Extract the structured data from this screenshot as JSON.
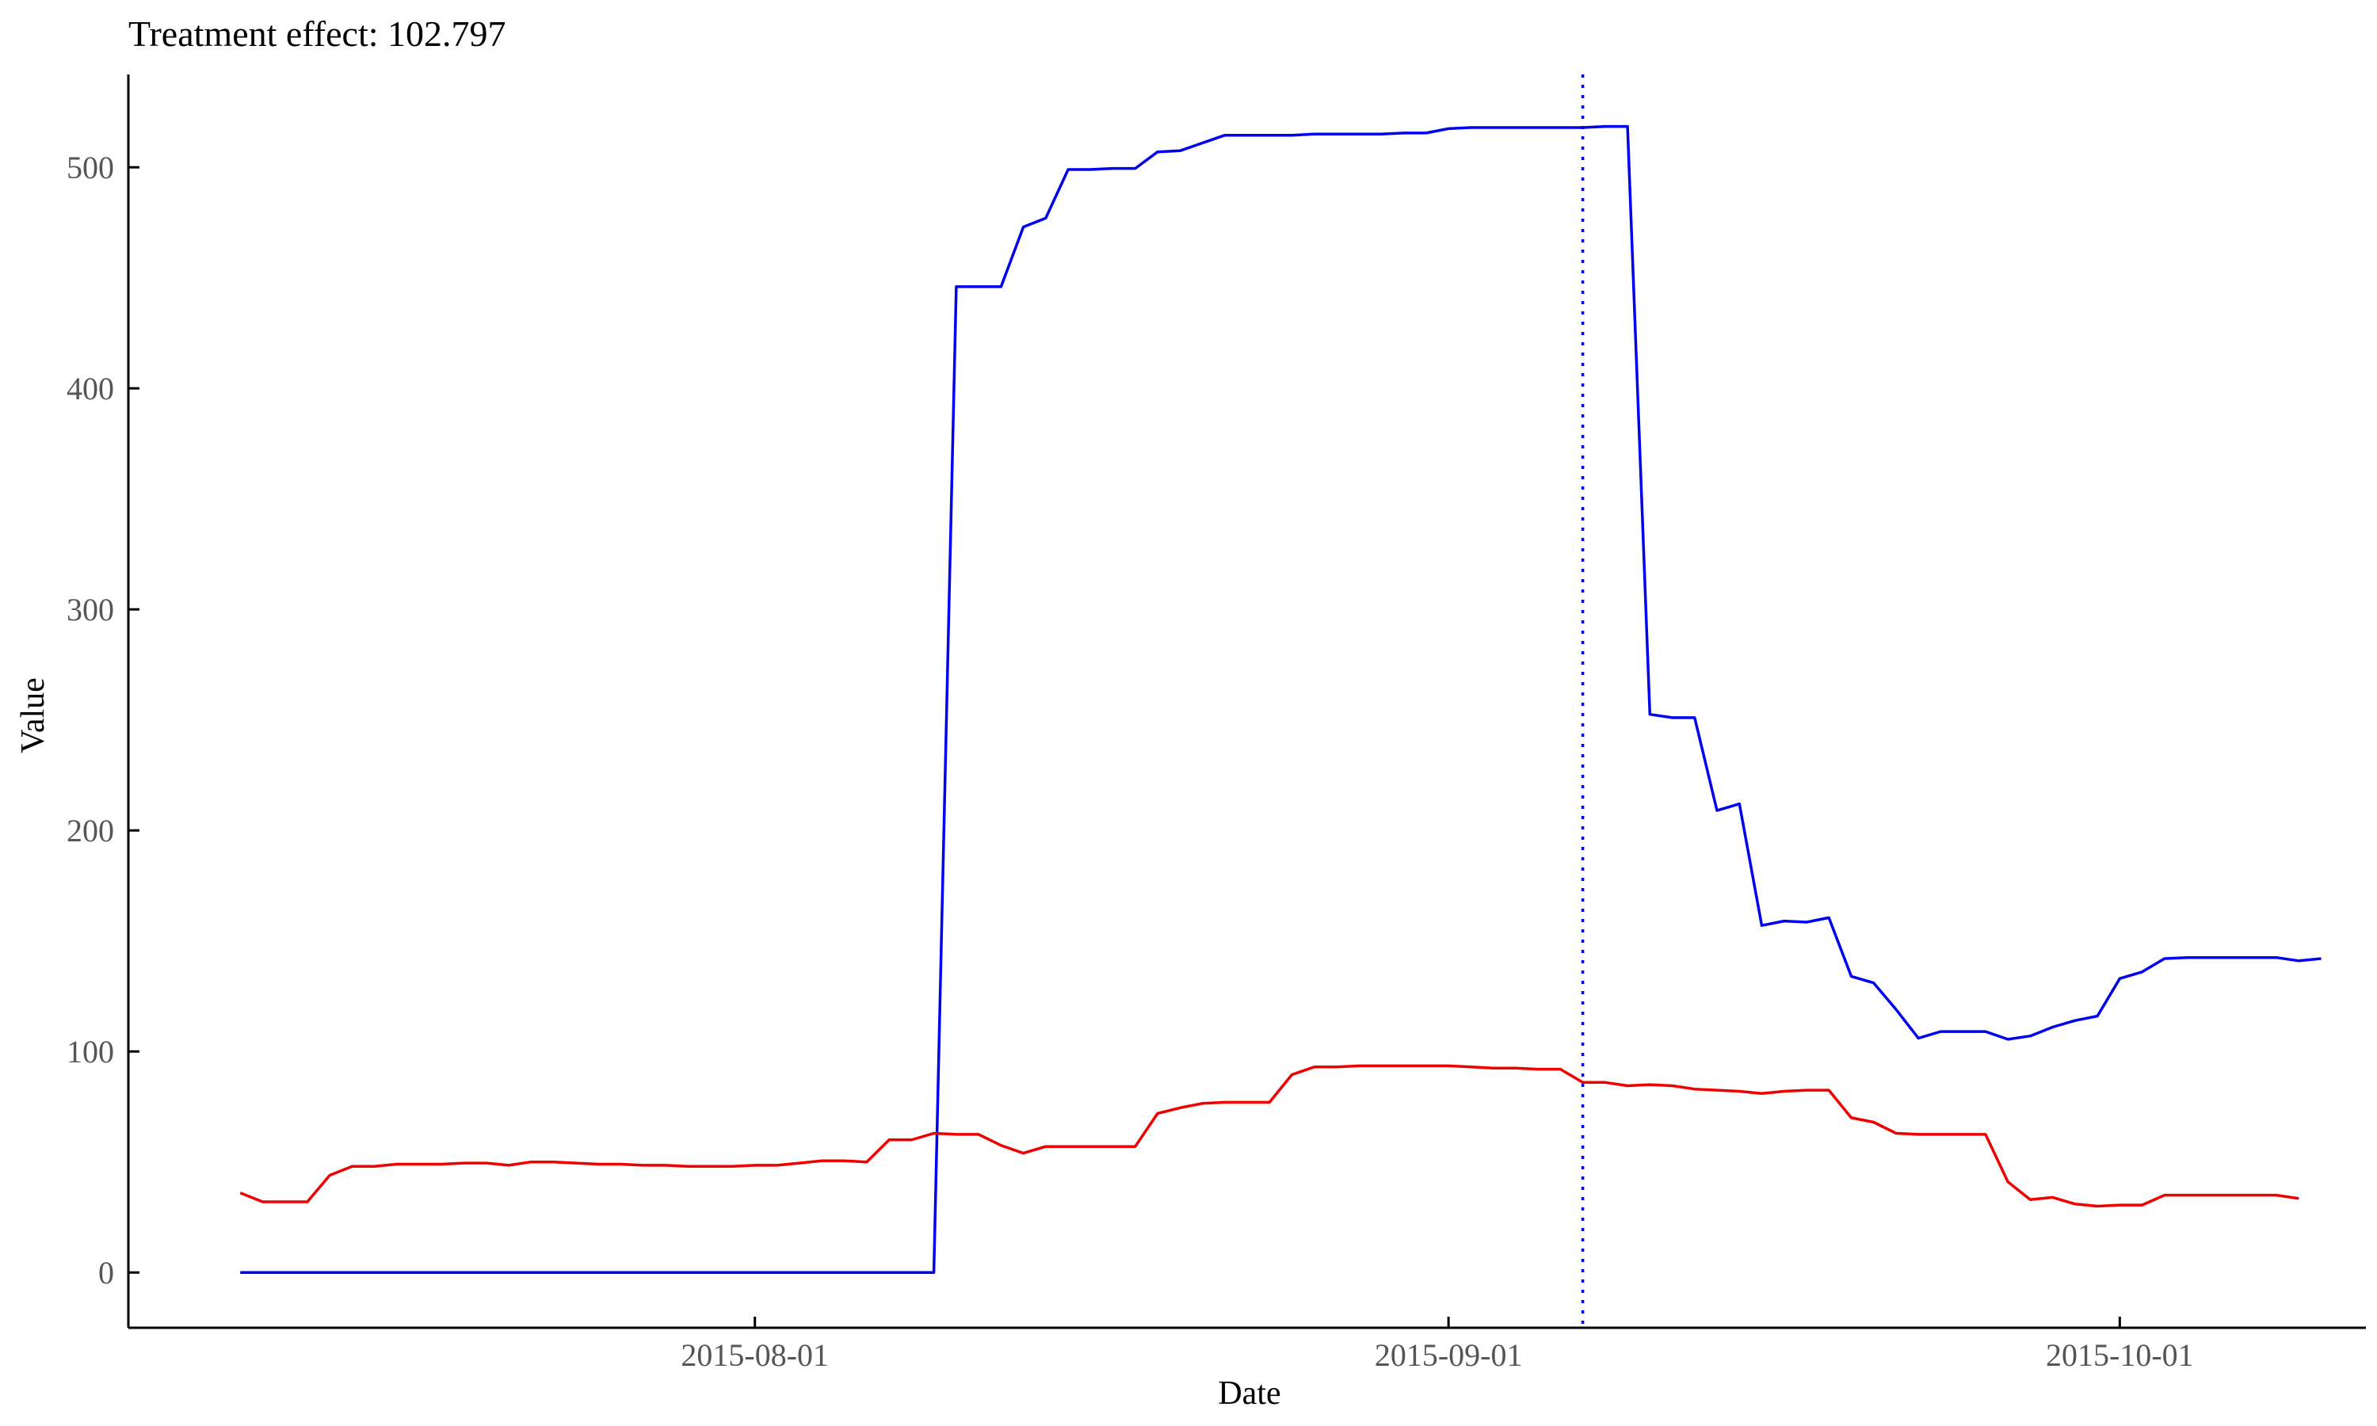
{
  "chart_data": {
    "type": "line",
    "title": "Treatment effect: 102.797",
    "xlabel": "Date",
    "ylabel": "Value",
    "x_start": "2015-07-09",
    "x_end": "2015-10-08",
    "xlim": [
      "2015-07-04",
      "2015-10-12"
    ],
    "ylim": [
      -25,
      542
    ],
    "x_ticks": [
      "2015-08-01",
      "2015-09-01",
      "2015-10-01"
    ],
    "y_ticks": [
      0,
      100,
      200,
      300,
      400,
      500
    ],
    "treatment_date": "2015-09-07",
    "grid": false,
    "legend": "none",
    "series": [
      {
        "color": "#0000ee",
        "values": [
          0,
          0,
          0,
          0,
          0,
          0,
          0,
          0,
          0,
          0,
          0,
          0,
          0,
          0,
          0,
          0,
          0,
          0,
          0,
          0,
          0,
          0,
          0,
          0,
          0,
          0,
          0,
          0,
          0,
          0,
          0,
          0,
          446,
          446,
          446,
          473,
          477,
          499,
          499,
          499.5,
          499.5,
          507,
          507.5,
          511,
          514.5,
          514.5,
          514.5,
          514.5,
          515,
          515,
          515,
          515,
          515.5,
          515.5,
          517.5,
          518,
          518,
          518,
          518,
          518,
          518,
          518.5,
          518.5,
          252.5,
          251,
          251,
          209,
          212,
          157,
          159,
          158.5,
          160.5,
          134,
          131,
          119,
          106,
          109,
          109,
          109,
          105.5,
          107,
          111,
          114,
          116,
          133,
          136,
          142,
          142.5,
          142.5,
          142.5,
          142.5,
          142.5,
          141,
          142
        ]
      },
      {
        "color": "#ee0000",
        "values": [
          36,
          32,
          32,
          32,
          44,
          48,
          48,
          49,
          49,
          49,
          49.5,
          49.5,
          48.5,
          50,
          50,
          49.5,
          49,
          49,
          48.5,
          48.5,
          48,
          48,
          48,
          48.5,
          48.5,
          49.5,
          50.5,
          50.5,
          50,
          60,
          60,
          63,
          62.5,
          62.5,
          57.5,
          54,
          57,
          57,
          57,
          57,
          57,
          72,
          74.5,
          76.5,
          77,
          77,
          77,
          89.5,
          93,
          93,
          93.5,
          93.5,
          93.5,
          93.5,
          93.5,
          93,
          92.5,
          92.5,
          92,
          92,
          86,
          86,
          84.5,
          85,
          84.5,
          83,
          82.5,
          82,
          81,
          82,
          82.5,
          82.5,
          70,
          68,
          63,
          62.5,
          62.5,
          62.5,
          62.5,
          41,
          33,
          34,
          31,
          30,
          30.5,
          30.5,
          35,
          35,
          35,
          35,
          35,
          35,
          33.5
        ]
      }
    ]
  }
}
